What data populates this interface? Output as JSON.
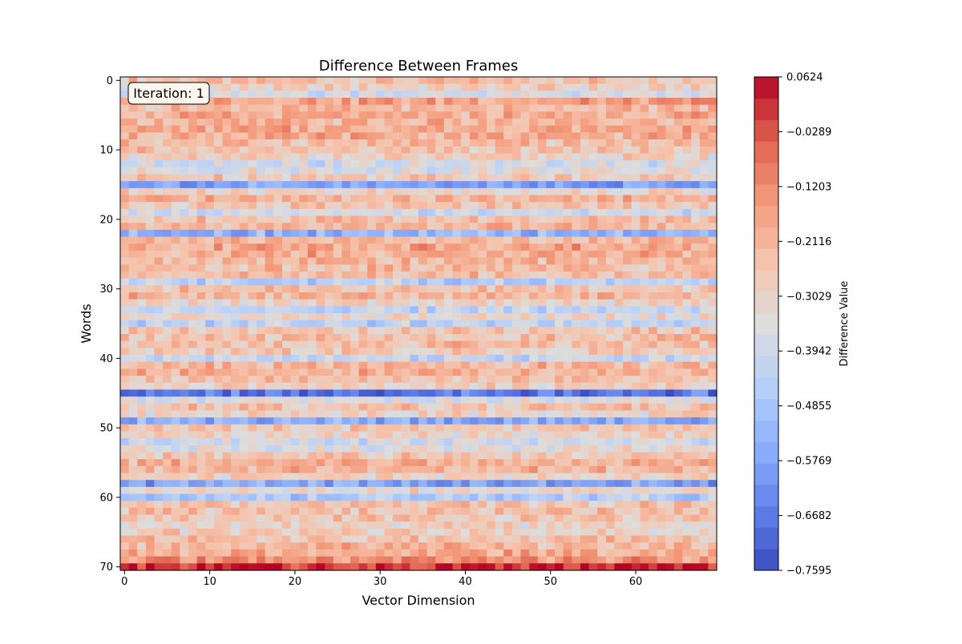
{
  "chart_data": {
    "type": "heatmap",
    "title": "Difference Between Frames",
    "xlabel": "Vector Dimension",
    "ylabel": "Words",
    "annotation": "Iteration: 1",
    "x_range": [
      0,
      69
    ],
    "y_range": [
      0,
      70
    ],
    "y_inverted": true,
    "x_ticks": [
      0,
      10,
      20,
      30,
      40,
      50,
      60
    ],
    "y_ticks": [
      0,
      10,
      20,
      30,
      40,
      50,
      60,
      70
    ],
    "colormap": "coolwarm",
    "colorbar": {
      "label": "Difference Value",
      "min": -0.7595,
      "max": 0.0624,
      "ticks": [
        "0.0624",
        "−0.0289",
        "−0.1203",
        "−0.2116",
        "−0.3029",
        "−0.3942",
        "−0.4855",
        "−0.5769",
        "−0.6682",
        "−0.7595"
      ],
      "levels": 23
    },
    "row_profile": {
      "rows": [
        0,
        1,
        2,
        3,
        4,
        5,
        6,
        7,
        8,
        9,
        10,
        11,
        12,
        13,
        14,
        15,
        16,
        17,
        18,
        19,
        20,
        21,
        22,
        23,
        24,
        25,
        26,
        27,
        28,
        29,
        30,
        31,
        32,
        33,
        34,
        35,
        36,
        37,
        38,
        39,
        40,
        41,
        42,
        43,
        44,
        45,
        46,
        47,
        48,
        49,
        50,
        51,
        52,
        53,
        54,
        55,
        56,
        57,
        58,
        59,
        60,
        61,
        62,
        63,
        64,
        65,
        66,
        67,
        68,
        69,
        70
      ],
      "mean_values": [
        -0.24,
        -0.3,
        -0.38,
        -0.16,
        -0.22,
        -0.2,
        -0.22,
        -0.18,
        -0.2,
        -0.24,
        -0.26,
        -0.3,
        -0.38,
        -0.34,
        -0.26,
        -0.58,
        -0.3,
        -0.22,
        -0.26,
        -0.4,
        -0.24,
        -0.22,
        -0.54,
        -0.22,
        -0.18,
        -0.2,
        -0.22,
        -0.24,
        -0.24,
        -0.44,
        -0.24,
        -0.22,
        -0.3,
        -0.42,
        -0.32,
        -0.44,
        -0.26,
        -0.24,
        -0.24,
        -0.28,
        -0.42,
        -0.22,
        -0.2,
        -0.26,
        -0.3,
        -0.68,
        -0.36,
        -0.26,
        -0.3,
        -0.56,
        -0.26,
        -0.3,
        -0.38,
        -0.34,
        -0.26,
        -0.2,
        -0.22,
        -0.28,
        -0.58,
        -0.32,
        -0.46,
        -0.26,
        -0.24,
        -0.26,
        -0.3,
        -0.28,
        -0.24,
        -0.22,
        -0.2,
        -0.14,
        0.02
      ]
    }
  }
}
